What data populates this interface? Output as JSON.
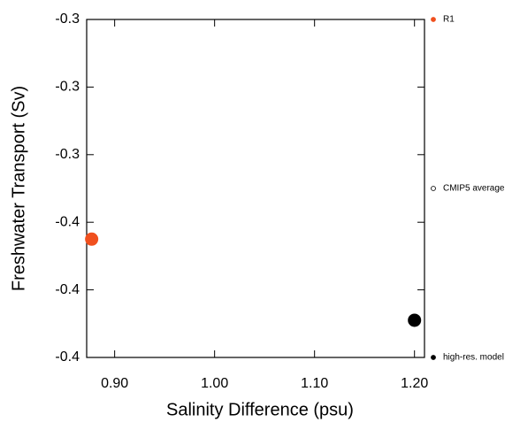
{
  "chart_data": {
    "type": "scatter",
    "x_label": "Salinity Difference (psu)",
    "y_label": "Freshwater Transport (Sv)",
    "xlim": [
      0.872,
      1.21
    ],
    "ylim": [
      -0.4,
      -0.3
    ],
    "xticks": [
      {
        "value": 0.9,
        "label": "0.90"
      },
      {
        "value": 1.0,
        "label": "1.00"
      },
      {
        "value": 1.1,
        "label": "1.10"
      },
      {
        "value": 1.2,
        "label": "1.20"
      }
    ],
    "yticks": [
      {
        "value": -0.3,
        "label": "-0.3"
      },
      {
        "value": -0.32,
        "label": "-0.3"
      },
      {
        "value": -0.34,
        "label": "-0.3"
      },
      {
        "value": -0.36,
        "label": "-0.4"
      },
      {
        "value": -0.38,
        "label": "-0.4"
      },
      {
        "value": -0.4,
        "label": "-0.4"
      }
    ],
    "series": [
      {
        "name": "R1",
        "color": "#f0501e",
        "filled": true,
        "x": [
          0.877
        ],
        "values": [
          -0.365
        ]
      },
      {
        "name": "CMIP5 average",
        "color": "#000000",
        "filled": false,
        "x": [],
        "values": []
      },
      {
        "name": "high-res. model",
        "color": "#000000",
        "filled": true,
        "x": [
          1.2
        ],
        "values": [
          -0.389
        ]
      }
    ]
  }
}
